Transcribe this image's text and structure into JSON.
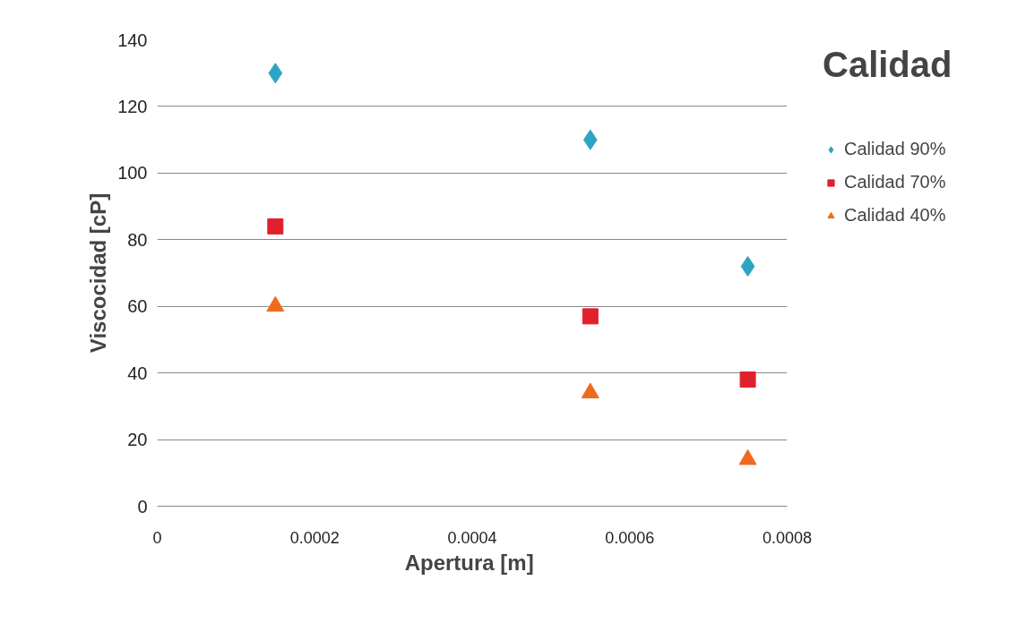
{
  "chart_data": {
    "type": "scatter",
    "xlabel": "Apertura  [m]",
    "ylabel": "Viscocidad [cP]",
    "legend_title": "Calidad",
    "x": [
      0.00015,
      0.00055,
      0.00075
    ],
    "series": [
      {
        "name": "Calidad 90%",
        "color": "#2ea3c2",
        "marker": "diamond",
        "values": [
          130,
          110,
          72
        ]
      },
      {
        "name": "Calidad 70%",
        "color": "#e0202c",
        "marker": "square",
        "values": [
          84,
          57,
          38
        ]
      },
      {
        "name": "Calidad 40%",
        "color": "#f06a1c",
        "marker": "triangle",
        "values": [
          60,
          34,
          14
        ]
      }
    ],
    "xlim": [
      0,
      0.0008
    ],
    "xticks": [
      0,
      {
        "value": 0.0002,
        "label": "0.0002"
      },
      {
        "value": 0.0004,
        "label": "0.0004"
      },
      {
        "value": 0.0006,
        "label": "0.0006"
      },
      {
        "value": 0.0008,
        "label": "0.0008"
      }
    ],
    "ylim": [
      0,
      140
    ],
    "yticks": [
      0,
      20,
      40,
      60,
      80,
      100,
      120,
      140
    ],
    "grid": "y",
    "legend": "right"
  }
}
